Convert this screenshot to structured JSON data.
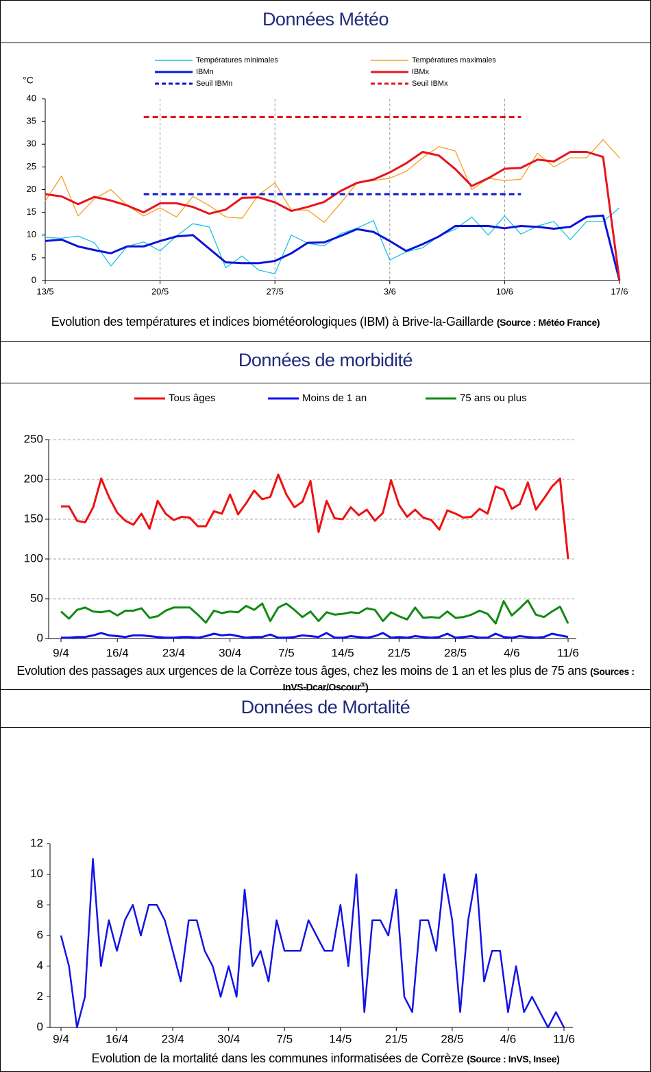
{
  "chart_data": [
    {
      "type": "line",
      "title": "Données Météo",
      "caption": "Evolution des températures et indices biométéorologiques (IBM) à Brive-la-Gaillarde",
      "source": "(Source : Météo France)",
      "ylabel": "°C",
      "legend": "top",
      "xgrid": true,
      "categories": [
        "13/5",
        null,
        null,
        null,
        null,
        null,
        null,
        "20/5",
        null,
        null,
        null,
        null,
        null,
        null,
        "27/5",
        null,
        null,
        null,
        null,
        null,
        null,
        "3/6",
        null,
        null,
        null,
        null,
        null,
        null,
        "10/6",
        null,
        null,
        null,
        null,
        null,
        null,
        "17/6"
      ],
      "ylim": [
        0,
        40
      ],
      "yticks": [
        0,
        5,
        10,
        15,
        20,
        25,
        30,
        35,
        40
      ],
      "series": [
        {
          "name": "Températures minimales",
          "color": "#19c3e6",
          "width": 1.3,
          "dash": false,
          "values": [
            9.5,
            9.3,
            9.8,
            8.3,
            3.2,
            7.5,
            8.5,
            6.5,
            9.8,
            12.5,
            11.8,
            2.8,
            5.4,
            2.3,
            1.5,
            10,
            8.2,
            7.6,
            10.3,
            11.5,
            13.2,
            4.5,
            6.3,
            7.2,
            9.8,
            11.3,
            14,
            10,
            14.2,
            10.2,
            12,
            13,
            9,
            13,
            13,
            16
          ]
        },
        {
          "name": "Températures maximales",
          "color": "#f4a11f",
          "width": 1.3,
          "dash": false,
          "values": [
            17.5,
            23,
            14.2,
            18,
            20,
            16.5,
            14.2,
            16,
            14,
            18.5,
            16.5,
            14,
            13.7,
            18.8,
            21.5,
            15.5,
            15.5,
            12.8,
            17,
            21.5,
            22,
            22.5,
            24,
            27,
            29.5,
            28.5,
            20,
            22.5,
            22,
            22.3,
            28,
            25,
            27,
            27,
            31,
            27
          ]
        },
        {
          "name": "IBMn",
          "color": "#0a14d8",
          "width": 3,
          "dash": false,
          "values": [
            8.7,
            9,
            7.5,
            6.7,
            6,
            7.5,
            7.5,
            8.7,
            9.7,
            10,
            7,
            4,
            3.8,
            3.8,
            4.3,
            6,
            8.3,
            8.4,
            9.8,
            11.3,
            10.7,
            8.7,
            6.5,
            8,
            9.7,
            12,
            12,
            12,
            11.5,
            12,
            11.8,
            11.4,
            11.8,
            14,
            14.3,
            0
          ]
        },
        {
          "name": "IBMx",
          "color": "#e8141c",
          "width": 3,
          "dash": false,
          "values": [
            19,
            18.5,
            16.8,
            18.4,
            17.6,
            16.5,
            15,
            17,
            17,
            16.2,
            14.7,
            15.6,
            18.2,
            18.3,
            17.2,
            15.3,
            16.2,
            17.3,
            19.7,
            21.5,
            22.2,
            23.8,
            25.8,
            28.3,
            27.5,
            24.5,
            20.8,
            22.5,
            24.6,
            24.8,
            26.6,
            26.2,
            28.3,
            28.3,
            27.2,
            0
          ]
        },
        {
          "name": "Seuil IBMn",
          "color": "#0a14d8",
          "width": 3,
          "dash": true,
          "values": [
            null,
            null,
            null,
            null,
            null,
            null,
            19,
            19,
            19,
            19,
            19,
            19,
            19,
            19,
            19,
            19,
            19,
            19,
            19,
            19,
            19,
            19,
            19,
            19,
            19,
            19,
            19,
            19,
            19,
            19,
            null,
            null,
            null,
            null,
            null,
            null
          ]
        },
        {
          "name": "Seuil IBMx",
          "color": "#e8141c",
          "width": 3,
          "dash": true,
          "values": [
            null,
            null,
            null,
            null,
            null,
            null,
            36,
            36,
            36,
            36,
            36,
            36,
            36,
            36,
            36,
            36,
            36,
            36,
            36,
            36,
            36,
            36,
            36,
            36,
            36,
            36,
            36,
            36,
            36,
            36,
            null,
            null,
            null,
            null,
            null,
            null
          ]
        }
      ]
    },
    {
      "type": "line",
      "title": "Données de morbidité",
      "caption": "Evolution des passages aux urgences de la Corrèze tous âges, chez les moins de 1 an et les plus de 75 ans",
      "source": "(Sources : InVS-Dcar/Oscour",
      "source_sup": "®",
      "source_end": ")",
      "legend": "top",
      "ygrid": true,
      "categories": [
        "9/4",
        null,
        null,
        null,
        null,
        null,
        null,
        "16/4",
        null,
        null,
        null,
        null,
        null,
        null,
        "23/4",
        null,
        null,
        null,
        null,
        null,
        null,
        "30/4",
        null,
        null,
        null,
        null,
        null,
        null,
        "7/5",
        null,
        null,
        null,
        null,
        null,
        null,
        "14/5",
        null,
        null,
        null,
        null,
        null,
        null,
        "21/5",
        null,
        null,
        null,
        null,
        null,
        null,
        "28/5",
        null,
        null,
        null,
        null,
        null,
        null,
        "4/6",
        null,
        null,
        null,
        null,
        null,
        null,
        "11/6"
      ],
      "ylim": [
        0,
        250
      ],
      "yticks": [
        0,
        50,
        100,
        150,
        200,
        250
      ],
      "series": [
        {
          "name": "Tous âges",
          "color": "#ee1111",
          "width": 3,
          "dash": false,
          "values": [
            166,
            166,
            148,
            146,
            165,
            201,
            177,
            158,
            148,
            143,
            157,
            138,
            173,
            157,
            149,
            153,
            152,
            141,
            141,
            160,
            157,
            181,
            156,
            170,
            186,
            175,
            178,
            206,
            181,
            165,
            172,
            198,
            134,
            173,
            151,
            150,
            165,
            155,
            162,
            148,
            158,
            199,
            168,
            153,
            162,
            152,
            149,
            137,
            161,
            157,
            152,
            153,
            163,
            157,
            191,
            187,
            163,
            169,
            196,
            162,
            176,
            191,
            201,
            100
          ]
        },
        {
          "name": "Moins de 1 an",
          "color": "#1111ee",
          "width": 3,
          "dash": false,
          "values": [
            1,
            1,
            2,
            2,
            4,
            7,
            4,
            3,
            2,
            4,
            4,
            3,
            2,
            1,
            1,
            2,
            2,
            1,
            3,
            6,
            4,
            5,
            3,
            1,
            2,
            2,
            5,
            1,
            1,
            2,
            4,
            3,
            2,
            7,
            1,
            1,
            3,
            2,
            1,
            3,
            7,
            1,
            2,
            1,
            3,
            2,
            1,
            2,
            6,
            1,
            2,
            3,
            1,
            1,
            6,
            2,
            1,
            3,
            2,
            1,
            2,
            6,
            4,
            2
          ]
        },
        {
          "name": "75 ans ou plus",
          "color": "#138a13",
          "width": 3,
          "dash": false,
          "values": [
            34,
            25,
            36,
            39,
            34,
            33,
            35,
            29,
            35,
            35,
            38,
            26,
            28,
            35,
            39,
            39,
            39,
            30,
            20,
            35,
            32,
            34,
            33,
            41,
            36,
            44,
            22,
            39,
            44,
            36,
            27,
            34,
            22,
            33,
            30,
            31,
            33,
            32,
            38,
            36,
            22,
            33,
            28,
            24,
            39,
            26,
            27,
            26,
            34,
            26,
            27,
            30,
            35,
            31,
            19,
            47,
            29,
            38,
            48,
            30,
            27,
            34,
            40,
            19
          ]
        }
      ]
    },
    {
      "type": "line",
      "title": "Données de Mortalité",
      "caption": "Evolution de la mortalité dans les communes informatisées de Corrèze",
      "source": "(Source : InVS, Insee)",
      "categories": [
        "9/4",
        null,
        null,
        null,
        null,
        null,
        null,
        "16/4",
        null,
        null,
        null,
        null,
        null,
        null,
        "23/4",
        null,
        null,
        null,
        null,
        null,
        null,
        "30/4",
        null,
        null,
        null,
        null,
        null,
        null,
        "7/5",
        null,
        null,
        null,
        null,
        null,
        null,
        "14/5",
        null,
        null,
        null,
        null,
        null,
        null,
        "21/5",
        null,
        null,
        null,
        null,
        null,
        null,
        "28/5",
        null,
        null,
        null,
        null,
        null,
        null,
        "4/6",
        null,
        null,
        null,
        null,
        null,
        null,
        "11/6"
      ],
      "ylim": [
        0,
        12
      ],
      "yticks": [
        0,
        2,
        4,
        6,
        8,
        10,
        12
      ],
      "series": [
        {
          "color": "#1414e6",
          "width": 2.5,
          "dash": false,
          "values": [
            6,
            4,
            0,
            2,
            11,
            4,
            7,
            5,
            7,
            8,
            6,
            8,
            8,
            7,
            5,
            3,
            7,
            7,
            5,
            4,
            2,
            4,
            2,
            9,
            4,
            5,
            3,
            7,
            5,
            5,
            5,
            7,
            6,
            5,
            5,
            8,
            4,
            10,
            1,
            7,
            7,
            6,
            9,
            2,
            1,
            7,
            7,
            5,
            10,
            7,
            1,
            7,
            10,
            3,
            5,
            5,
            1,
            4,
            1,
            2,
            1,
            0,
            1,
            0
          ]
        }
      ]
    }
  ]
}
